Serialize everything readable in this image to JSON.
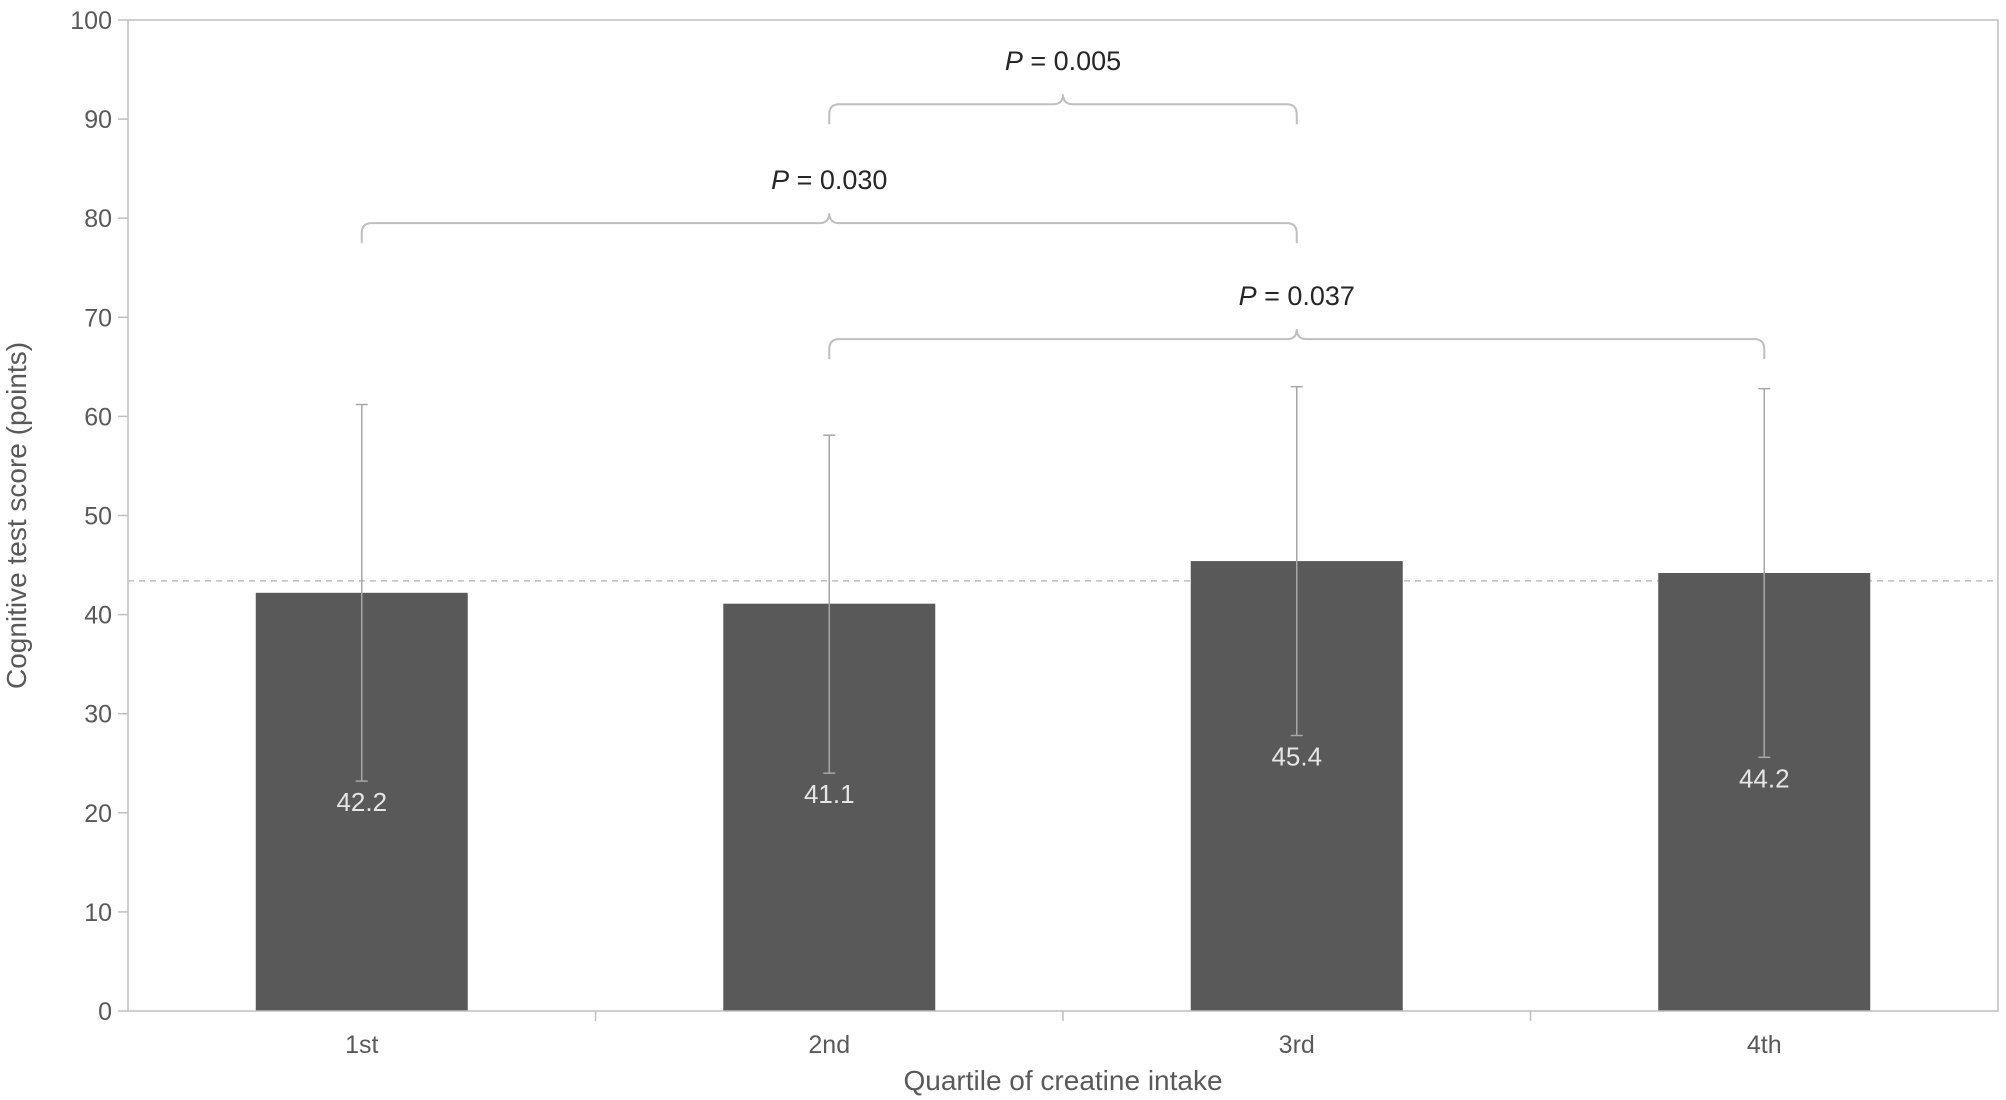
{
  "chart_data": {
    "type": "bar",
    "title": "",
    "xlabel": "Quartile of creatine intake",
    "ylabel": "Cognitive test score (points)",
    "ylim": [
      0,
      100
    ],
    "yticks": [
      0,
      10,
      20,
      30,
      40,
      50,
      60,
      70,
      80,
      90,
      100
    ],
    "grid": false,
    "categories": [
      "1st",
      "2nd",
      "3rd",
      "4th"
    ],
    "values": [
      42.2,
      41.1,
      45.4,
      44.2
    ],
    "value_labels": [
      "42.2",
      "41.1",
      "45.4",
      "44.2"
    ],
    "error_low": [
      23.2,
      24.0,
      27.8,
      25.6
    ],
    "error_high": [
      61.2,
      58.1,
      63.0,
      62.8
    ],
    "reference_line": 43.4,
    "bar_color": "#595959",
    "comparisons": [
      {
        "from": 1,
        "to": 2,
        "y": 91.5,
        "p_label": "P",
        "p_value": " = 0.005"
      },
      {
        "from": 0,
        "to": 2,
        "y": 79.5,
        "p_label": "P",
        "p_value": " = 0.030"
      },
      {
        "from": 1,
        "to": 3,
        "y": 67.8,
        "p_label": "P",
        "p_value": " = 0.037"
      }
    ]
  }
}
